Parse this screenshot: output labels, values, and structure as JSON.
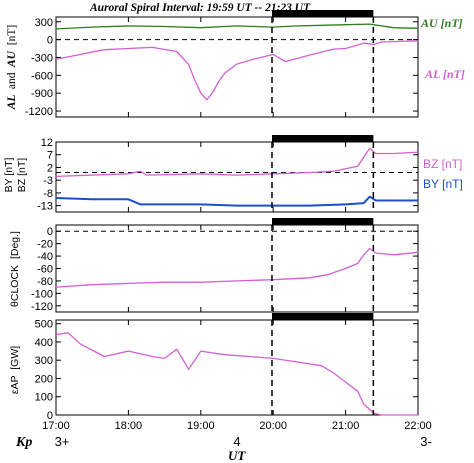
{
  "title": "Auroral Spiral Interval: 19:59 UT -- 21:23 UT",
  "xaxis": {
    "label": "UT",
    "range": [
      "17:00",
      "22:00"
    ],
    "tick_labels": [
      "17:00",
      "18:00",
      "19:00",
      "20:00",
      "21:00",
      "22:00"
    ],
    "kp_label": "Kp",
    "kp_values": [
      {
        "time": "17:00",
        "label": "3+"
      },
      {
        "time": "19:30",
        "label": "4"
      },
      {
        "time": "22:00",
        "label": "3-"
      }
    ]
  },
  "interval": {
    "start": "19:59",
    "end": "21:23"
  },
  "colors": {
    "au": "#2e7d1e",
    "al": "#d45fd4",
    "bz": "#d45fd4",
    "by": "#1c4fc8",
    "interval_bar": "#000000"
  },
  "chart_data": [
    {
      "type": "line",
      "ylabel_parts": [
        "AL",
        "and",
        "AU",
        "[nT]"
      ],
      "ylim": [
        -1300,
        380
      ],
      "yticks": [
        300,
        0,
        -300,
        -600,
        -900,
        -1200
      ],
      "yticklabels": [
        "300",
        "0",
        "-300",
        "-600",
        "-900",
        "-1200"
      ],
      "hline": 0,
      "series": [
        {
          "name": "AU [nT]",
          "x": [
            "17:00",
            "17:30",
            "18:00",
            "18:30",
            "19:00",
            "19:30",
            "20:00",
            "20:20",
            "20:40",
            "21:00",
            "21:20",
            "21:40",
            "22:00"
          ],
          "y": [
            180,
            210,
            230,
            220,
            200,
            230,
            210,
            230,
            240,
            250,
            260,
            200,
            190
          ]
        },
        {
          "name": "AL [nT]",
          "x": [
            "17:00",
            "17:20",
            "17:40",
            "18:00",
            "18:20",
            "18:40",
            "18:50",
            "18:55",
            "19:00",
            "19:05",
            "19:10",
            "19:15",
            "19:20",
            "19:30",
            "19:45",
            "20:00",
            "20:10",
            "20:30",
            "20:50",
            "21:00",
            "21:15",
            "21:23",
            "21:30",
            "21:45",
            "22:00"
          ],
          "y": [
            -330,
            -250,
            -170,
            -150,
            -130,
            -200,
            -420,
            -680,
            -900,
            -1010,
            -880,
            -700,
            -560,
            -410,
            -320,
            -250,
            -370,
            -260,
            -160,
            -150,
            -60,
            -80,
            -40,
            -30,
            -20
          ]
        }
      ]
    },
    {
      "type": "line",
      "ylabel_parts": [
        "BY [nT]",
        "BZ [nT]"
      ],
      "ylim": [
        -15.5,
        12
      ],
      "yticks": [
        12,
        7,
        2,
        -3,
        -8,
        -13
      ],
      "yticklabels": [
        "12",
        "7",
        "2",
        "-3",
        "-8",
        "-13"
      ],
      "hline": 0,
      "series": [
        {
          "name": "BZ [nT]",
          "x": [
            "17:00",
            "18:00",
            "18:10",
            "18:15",
            "19:00",
            "19:30",
            "20:00",
            "20:30",
            "20:50",
            "21:00",
            "21:10",
            "21:15",
            "21:20",
            "21:25",
            "21:40",
            "22:00"
          ],
          "y": [
            -1.5,
            -0.5,
            0.5,
            -1,
            -0.5,
            -1,
            -0.5,
            0,
            0.5,
            1.5,
            2.5,
            6,
            9.5,
            7.5,
            7.5,
            8
          ]
        },
        {
          "name": "BY [nT]",
          "x": [
            "17:00",
            "17:30",
            "18:00",
            "18:05",
            "18:10",
            "19:00",
            "19:30",
            "20:00",
            "20:30",
            "21:00",
            "21:15",
            "21:20",
            "21:25",
            "21:30",
            "21:45",
            "22:00"
          ],
          "y": [
            -10,
            -10.5,
            -10.5,
            -11.5,
            -12.5,
            -12.5,
            -13,
            -13,
            -13,
            -12.5,
            -12,
            -9.5,
            -11,
            -11,
            -11,
            -11
          ]
        }
      ]
    },
    {
      "type": "line",
      "ylabel_parts": [
        "θCLOCK",
        "[Deg.]"
      ],
      "ylim": [
        -130,
        10
      ],
      "yticks": [
        0,
        -20,
        -40,
        -60,
        -80,
        -100,
        -120
      ],
      "yticklabels": [
        "0",
        "-20",
        "-40",
        "-60",
        "-80",
        "-100",
        "-120"
      ],
      "hline": 0,
      "series": [
        {
          "name": "θCLOCK",
          "x": [
            "17:00",
            "17:30",
            "18:00",
            "18:30",
            "19:00",
            "19:30",
            "20:00",
            "20:30",
            "20:45",
            "21:00",
            "21:10",
            "21:15",
            "21:20",
            "21:25",
            "21:40",
            "22:00"
          ],
          "y": [
            -90,
            -86,
            -84,
            -82,
            -82,
            -80,
            -78,
            -75,
            -70,
            -60,
            -52,
            -38,
            -28,
            -35,
            -38,
            -34
          ]
        }
      ]
    },
    {
      "type": "line",
      "ylabel_parts": [
        "εAP",
        "[GW]"
      ],
      "ylim": [
        0,
        520
      ],
      "yticks": [
        500,
        400,
        300,
        200,
        100,
        0
      ],
      "yticklabels": [
        "500",
        "400",
        "300",
        "200",
        "100",
        "0"
      ],
      "series": [
        {
          "name": "εAP",
          "x": [
            "17:00",
            "17:10",
            "17:20",
            "17:40",
            "18:00",
            "18:20",
            "18:30",
            "18:40",
            "18:50",
            "19:00",
            "19:20",
            "19:40",
            "20:00",
            "20:20",
            "20:40",
            "20:50",
            "21:00",
            "21:10",
            "21:15",
            "21:20",
            "21:23",
            "21:30",
            "22:00"
          ],
          "y": [
            440,
            450,
            390,
            320,
            350,
            320,
            310,
            360,
            250,
            350,
            330,
            320,
            310,
            290,
            270,
            230,
            180,
            130,
            60,
            30,
            10,
            0,
            0
          ]
        }
      ]
    }
  ]
}
